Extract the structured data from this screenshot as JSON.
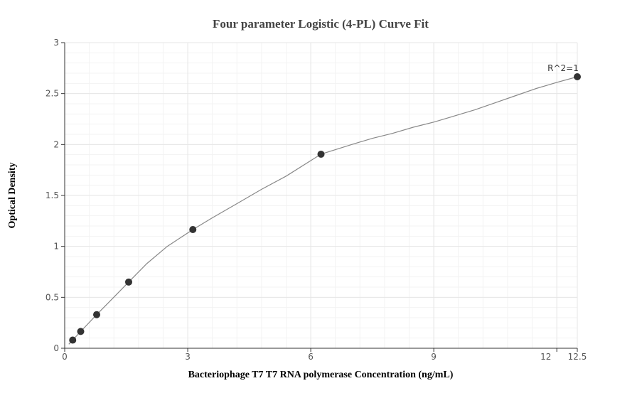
{
  "chart_data": {
    "type": "scatter",
    "title": "Four parameter Logistic (4-PL) Curve Fit",
    "xlabel": "Bacteriophage T7 T7 RNA polymerase Concentration (ng/mL)",
    "ylabel": "Optical Density",
    "xlim": [
      0,
      12.5
    ],
    "ylim": [
      0,
      3
    ],
    "xticks": [
      0,
      3,
      6,
      9,
      12,
      12.5
    ],
    "xtick_labels": [
      "0",
      "3",
      "6",
      "9",
      "12",
      "12.5"
    ],
    "yticks": [
      0,
      0.5,
      1,
      1.5,
      2,
      2.5,
      3
    ],
    "ytick_labels": [
      "0",
      "0.5",
      "1",
      "1.5",
      "2",
      "2.5",
      "3"
    ],
    "grid": true,
    "series": [
      {
        "x": [
          0.195,
          0.39,
          0.78,
          1.56,
          3.125,
          6.25,
          12.5
        ],
        "y": [
          0.08,
          0.165,
          0.33,
          0.65,
          1.165,
          1.905,
          2.665
        ]
      }
    ],
    "curve": [
      [
        0.1,
        0.04
      ],
      [
        0.195,
        0.08
      ],
      [
        0.39,
        0.165
      ],
      [
        0.78,
        0.33
      ],
      [
        1.17,
        0.49
      ],
      [
        1.56,
        0.65
      ],
      [
        2.0,
        0.83
      ],
      [
        2.5,
        1.0
      ],
      [
        3.125,
        1.165
      ],
      [
        3.6,
        1.28
      ],
      [
        4.2,
        1.42
      ],
      [
        4.8,
        1.56
      ],
      [
        5.4,
        1.69
      ],
      [
        6.25,
        1.905
      ],
      [
        7.0,
        2.0
      ],
      [
        7.5,
        2.06
      ],
      [
        8.0,
        2.11
      ],
      [
        8.5,
        2.17
      ],
      [
        9.0,
        2.22
      ],
      [
        9.5,
        2.28
      ],
      [
        10.0,
        2.34
      ],
      [
        10.5,
        2.41
      ],
      [
        11.0,
        2.48
      ],
      [
        11.5,
        2.55
      ],
      [
        12.0,
        2.61
      ],
      [
        12.5,
        2.665
      ]
    ],
    "annotations": [
      {
        "text": "R^2=1",
        "x": 12.5,
        "y": 2.665
      }
    ]
  }
}
